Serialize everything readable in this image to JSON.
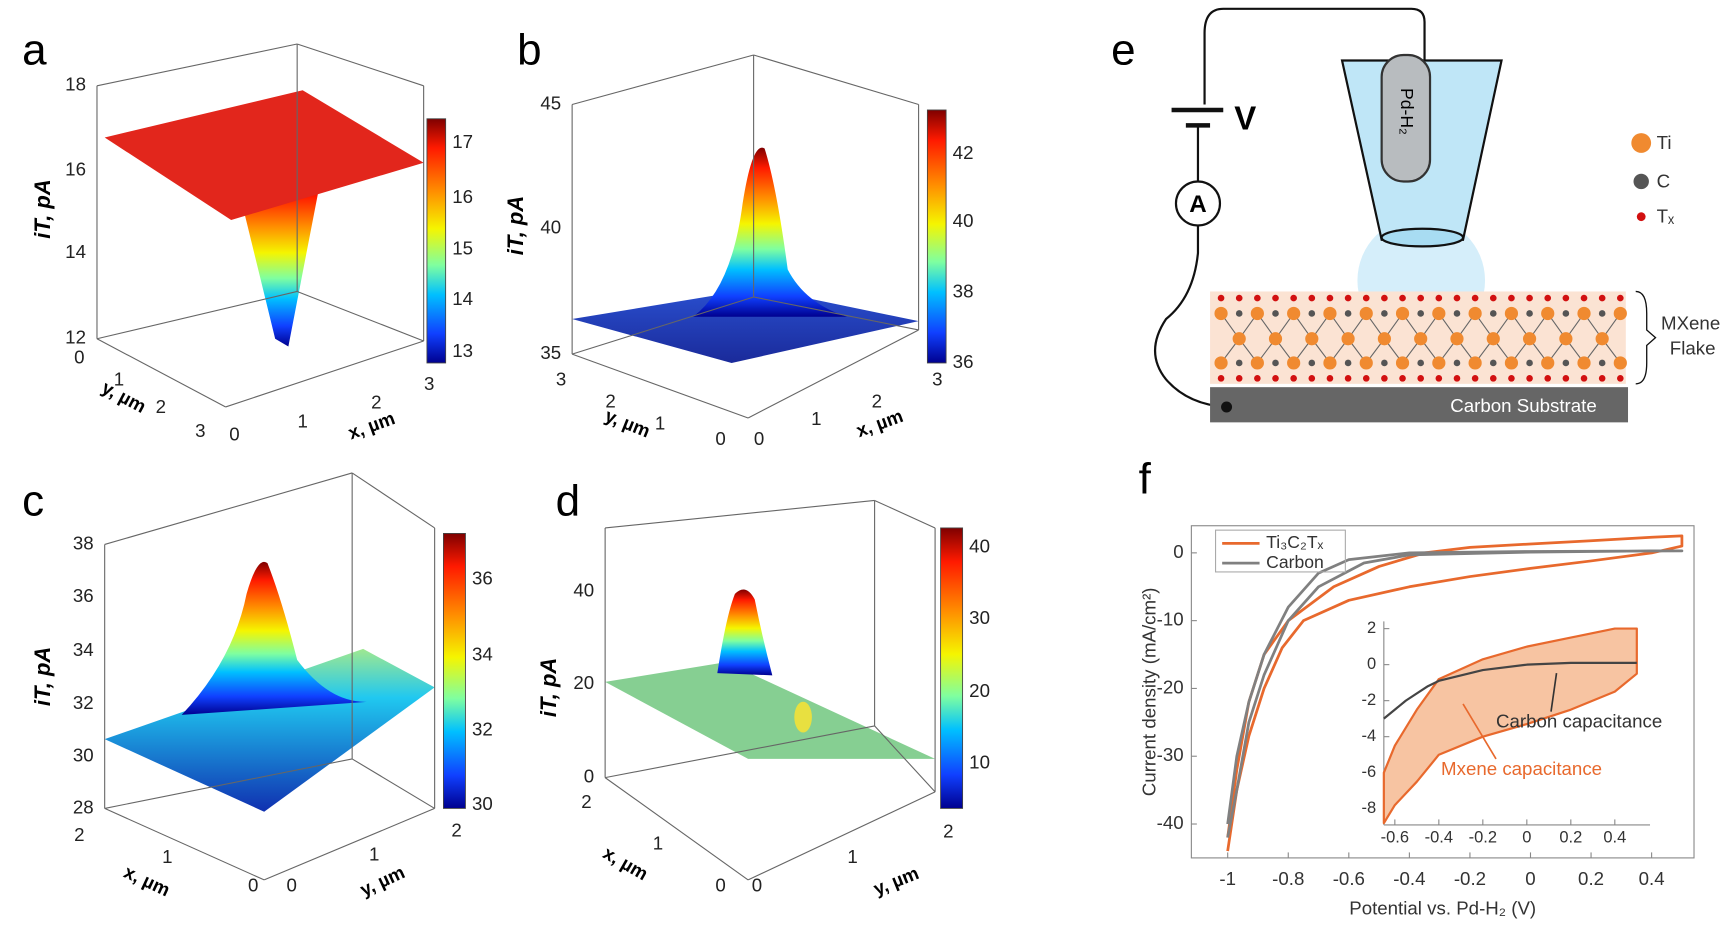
{
  "panels": [
    {
      "label": "a",
      "z_label": "iT, pA",
      "z_ticks": [
        "18",
        "16",
        "14",
        "12"
      ],
      "y_ticks": [
        "0",
        "1",
        "2",
        "3"
      ],
      "y_label": "y, µm",
      "x_ticks": [
        "0",
        "1",
        "2",
        "3"
      ],
      "x_label": "x, µm",
      "colorbar_ticks": [
        "17",
        "16",
        "15",
        "14",
        "13"
      ]
    },
    {
      "label": "b",
      "z_label": "iT, pA",
      "z_ticks": [
        "45",
        "40",
        "35"
      ],
      "y_ticks": [
        "3",
        "2",
        "1",
        "0"
      ],
      "y_label": "y, µm",
      "x_ticks": [
        "0",
        "1",
        "2",
        "3"
      ],
      "x_label": "x, µm",
      "colorbar_ticks": [
        "42",
        "40",
        "38",
        "36"
      ]
    },
    {
      "label": "c",
      "z_label": "iT, pA",
      "z_ticks": [
        "38",
        "36",
        "34",
        "32",
        "30",
        "28"
      ],
      "y_ticks": [
        "2",
        "1",
        "0"
      ],
      "y_label": "x, µm",
      "x_ticks": [
        "0",
        "1",
        "2"
      ],
      "x_label": "y, µm",
      "colorbar_ticks": [
        "36",
        "34",
        "32",
        "30"
      ]
    },
    {
      "label": "d",
      "z_label": "iT, pA",
      "z_ticks": [
        "40",
        "20",
        "0"
      ],
      "y_ticks": [
        "2",
        "1",
        "0"
      ],
      "y_label": "x, µm",
      "x_ticks": [
        "0",
        "1",
        "2"
      ],
      "x_label": "y, µm",
      "colorbar_ticks": [
        "40",
        "30",
        "20",
        "10"
      ]
    }
  ],
  "schematic": {
    "label": "e",
    "voltage": "V",
    "ammeter": "A",
    "electrode": "Pd-H₂",
    "legend": [
      "Ti",
      "C",
      "Tₓ"
    ],
    "flake": [
      "MXene",
      "Flake"
    ],
    "substrate": "Carbon Substrate"
  },
  "panel_f": {
    "label": "f"
  },
  "chart_data": [
    {
      "type": "line",
      "x_label": "Potential vs. Pd-H₂ (V)",
      "y_label": "Current density (mA/cm²)",
      "xlim": [
        -1.12,
        0.54
      ],
      "ylim": [
        -45,
        4
      ],
      "xticks": [
        -1,
        -0.8,
        -0.6,
        -0.4,
        -0.2,
        0,
        0.2,
        0.4
      ],
      "yticks": [
        0,
        -10,
        -20,
        -30,
        -40
      ],
      "series": [
        {
          "name": "Ti₃C₂Tₓ",
          "color": "#e8692d",
          "x": [
            -1,
            -0.97,
            -0.93,
            -0.88,
            -0.82,
            -0.75,
            -0.6,
            -0.4,
            -0.2,
            0,
            0.2,
            0.4,
            0.5,
            0.5,
            0.4,
            0.2,
            0,
            -0.2,
            -0.35,
            -0.5,
            -0.65,
            -0.8,
            -0.88,
            -0.93,
            -0.97,
            -1
          ],
          "values": [
            -44,
            -35,
            -27,
            -20,
            -14,
            -10,
            -7,
            -5,
            -3.5,
            -2.3,
            -1.2,
            0,
            1,
            2.5,
            2.3,
            1.8,
            1.3,
            0.8,
            0,
            -2,
            -5,
            -10,
            -15,
            -22,
            -32,
            -42
          ]
        },
        {
          "name": "Carbon",
          "color": "#808080",
          "x": [
            -1,
            -0.97,
            -0.93,
            -0.88,
            -0.8,
            -0.7,
            -0.6,
            -0.4,
            0,
            0.5,
            0.4,
            0,
            -0.4,
            -0.55,
            -0.7,
            -0.8,
            -0.88,
            -0.93,
            -0.97,
            -1
          ],
          "values": [
            -40,
            -30,
            -22,
            -15,
            -8,
            -3,
            -1,
            0,
            0.2,
            0.3,
            0.3,
            0.1,
            -0.3,
            -1.5,
            -5,
            -10,
            -18,
            -25,
            -35,
            -42
          ]
        }
      ]
    },
    {
      "type": "line",
      "xlim": [
        -0.65,
        0.56
      ],
      "ylim": [
        -8.9,
        2.4
      ],
      "xticks": [
        -0.6,
        -0.4,
        -0.2,
        0,
        0.2,
        0.4
      ],
      "yticks": [
        2,
        0,
        -2,
        -4,
        -6,
        -8
      ],
      "series": [
        {
          "color": "#e8692d",
          "fill_color": "#f7c4a2",
          "x": [
            -0.65,
            -0.6,
            -0.5,
            -0.4,
            -0.2,
            0,
            0.2,
            0.4,
            0.5,
            0.5,
            0.4,
            0.2,
            0,
            -0.2,
            -0.4,
            -0.5,
            -0.6,
            -0.65
          ],
          "values": [
            -8.8,
            -7.8,
            -6.5,
            -5,
            -4,
            -3.3,
            -2.5,
            -1.5,
            -0.5,
            2,
            2,
            1.5,
            1,
            0.3,
            -0.8,
            -2.5,
            -4.5,
            -6
          ]
        },
        {
          "color": "#444444",
          "x": [
            -0.65,
            -0.55,
            -0.45,
            -0.4,
            -0.2,
            0,
            0.2,
            0.5
          ],
          "values": [
            -3,
            -2,
            -1.2,
            -0.9,
            -0.3,
            0,
            0.1,
            0.1
          ]
        }
      ],
      "annotations": [
        {
          "text": "Carbon capacitance",
          "color": "#333333"
        },
        {
          "text": "Mxene capacitance",
          "color": "#e8692d"
        }
      ]
    }
  ]
}
